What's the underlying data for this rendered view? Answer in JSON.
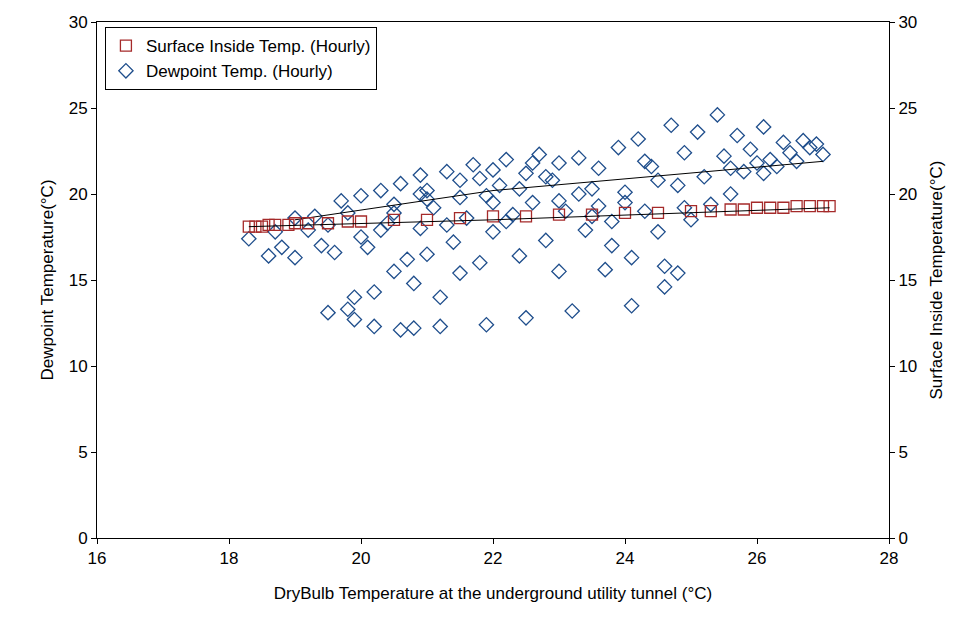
{
  "chart_data": {
    "type": "scatter",
    "x_label": "DryBulb Temperature at the underground utility tunnel (°C)",
    "y_label": "Dewpoint Temperature(°C)",
    "y2_label": "Surface Inside Temperature(°C)",
    "xlim": [
      16,
      28
    ],
    "xticks": [
      16,
      18,
      20,
      22,
      24,
      26,
      28
    ],
    "ylim": [
      0,
      30
    ],
    "yticks": [
      0,
      5,
      10,
      15,
      20,
      25,
      30
    ],
    "y2lim": [
      0,
      30
    ],
    "y2ticks": [
      0,
      5,
      10,
      15,
      20,
      25,
      30
    ],
    "grid": false,
    "legend": "upper left",
    "series": [
      {
        "name": "Surface Inside Temp. (Hourly)",
        "type": "scatter",
        "color": "#a52a2a",
        "marker": "square-open",
        "axis": "y2",
        "x": [
          18.3,
          18.4,
          18.5,
          18.6,
          18.7,
          18.9,
          19.0,
          19.2,
          19.5,
          19.8,
          20.0,
          20.5,
          21.0,
          21.5,
          22.0,
          22.5,
          23.0,
          23.5,
          24.0,
          24.5,
          25.0,
          25.3,
          25.6,
          25.8,
          26.0,
          26.2,
          26.4,
          26.6,
          26.8,
          27.0,
          27.1
        ],
        "values": [
          18.1,
          18.1,
          18.1,
          18.2,
          18.2,
          18.2,
          18.3,
          18.3,
          18.3,
          18.4,
          18.4,
          18.5,
          18.5,
          18.6,
          18.7,
          18.7,
          18.8,
          18.8,
          18.9,
          18.9,
          19.0,
          19.0,
          19.1,
          19.1,
          19.2,
          19.2,
          19.2,
          19.3,
          19.3,
          19.3,
          19.3
        ]
      },
      {
        "name": "Dewpoint Temp. (Hourly)",
        "type": "scatter",
        "color": "#1f4e8c",
        "marker": "diamond-open",
        "axis": "y",
        "x": [
          18.3,
          18.6,
          18.8,
          18.7,
          19.0,
          19.0,
          19.2,
          19.3,
          19.4,
          19.5,
          19.5,
          19.6,
          19.7,
          19.8,
          19.8,
          19.9,
          19.9,
          20.0,
          20.0,
          20.1,
          20.2,
          20.2,
          20.3,
          20.4,
          20.5,
          20.5,
          20.6,
          20.6,
          20.7,
          20.8,
          20.8,
          20.9,
          20.9,
          21.0,
          21.0,
          21.1,
          21.2,
          21.2,
          21.3,
          21.4,
          21.5,
          21.5,
          21.6,
          21.7,
          21.8,
          21.9,
          21.9,
          22.0,
          22.0,
          22.1,
          22.2,
          22.3,
          22.4,
          22.5,
          22.5,
          22.6,
          22.7,
          22.8,
          22.9,
          23.0,
          23.0,
          23.1,
          23.2,
          23.3,
          23.4,
          23.5,
          23.6,
          23.7,
          23.8,
          23.9,
          24.0,
          24.1,
          24.1,
          24.2,
          24.3,
          24.4,
          24.5,
          24.6,
          24.6,
          24.7,
          24.8,
          24.8,
          24.9,
          25.0,
          25.1,
          25.2,
          25.3,
          25.4,
          25.5,
          25.6,
          25.7,
          25.8,
          25.9,
          26.0,
          26.1,
          26.2,
          26.3,
          26.4,
          26.5,
          26.6,
          26.7,
          26.8,
          26.9,
          27.0,
          26.1,
          25.6,
          21.5,
          22.0,
          22.4,
          23.0,
          23.5,
          24.0,
          24.5,
          20.5,
          21.0,
          22.8,
          23.3,
          24.3,
          21.8,
          20.3,
          22.2,
          23.8,
          24.9,
          20.9,
          21.3,
          22.6,
          23.6
        ],
        "values": [
          17.4,
          16.4,
          16.9,
          17.8,
          16.3,
          18.6,
          17.9,
          18.7,
          17.0,
          18.2,
          13.1,
          16.6,
          19.6,
          13.3,
          18.9,
          12.7,
          14.0,
          19.9,
          17.5,
          16.9,
          14.3,
          12.3,
          20.2,
          18.3,
          19.4,
          15.5,
          12.1,
          20.6,
          16.2,
          12.2,
          14.8,
          18.0,
          21.1,
          20.2,
          16.5,
          19.2,
          12.3,
          14.0,
          21.3,
          17.2,
          15.4,
          20.8,
          18.6,
          21.7,
          16.0,
          12.4,
          19.9,
          21.4,
          17.8,
          20.5,
          22.0,
          18.8,
          16.4,
          21.2,
          12.8,
          19.5,
          22.3,
          17.3,
          20.8,
          21.8,
          15.5,
          19.0,
          13.2,
          22.1,
          17.9,
          20.3,
          21.5,
          15.6,
          18.4,
          22.7,
          20.1,
          13.5,
          16.3,
          23.2,
          19.0,
          21.6,
          17.8,
          15.8,
          14.6,
          24.0,
          15.4,
          20.5,
          22.4,
          18.5,
          23.6,
          21.0,
          19.4,
          24.6,
          22.2,
          20.0,
          23.4,
          21.3,
          22.6,
          21.8,
          23.9,
          22.0,
          21.6,
          23.0,
          22.4,
          21.9,
          23.1,
          22.7,
          22.9,
          22.3,
          21.2,
          21.5,
          19.8,
          19.5,
          20.3,
          19.6,
          18.7,
          19.5,
          20.8,
          18.9,
          19.7,
          21.0,
          20.0,
          21.9,
          20.9,
          17.9,
          18.4,
          17.0,
          19.2,
          20.0,
          18.2,
          21.8,
          19.3
        ]
      },
      {
        "type": "line",
        "color": "#000000",
        "line_style": "solid",
        "axis": "y2",
        "x": [
          18.3,
          22.0,
          27.1
        ],
        "values": [
          18.1,
          18.5,
          19.2
        ]
      },
      {
        "type": "line",
        "color": "#000000",
        "line_style": "solid",
        "axis": "y",
        "x": [
          19.0,
          22.0,
          27.0
        ],
        "values": [
          18.5,
          20.2,
          21.9
        ]
      }
    ]
  }
}
